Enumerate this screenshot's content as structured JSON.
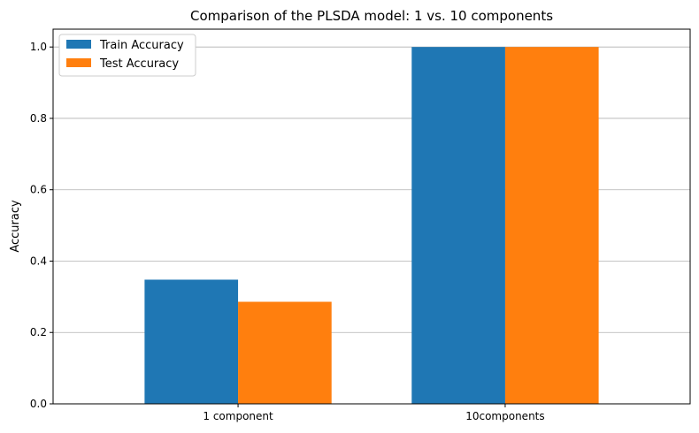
{
  "chart_data": {
    "type": "bar",
    "title": "Comparison of the PLSDA model: 1 vs. 10 components",
    "xlabel": "",
    "ylabel": "Accuracy",
    "categories": [
      "1 component",
      "10components"
    ],
    "series": [
      {
        "name": "Train Accuracy",
        "values": [
          0.348,
          1.0
        ],
        "color": "#1f77b4"
      },
      {
        "name": "Test Accuracy",
        "values": [
          0.286,
          1.0
        ],
        "color": "#ff7f0e"
      }
    ],
    "ylim": [
      0,
      1.05
    ],
    "yticks": [
      "0.0",
      "0.2",
      "0.4",
      "0.6",
      "0.8",
      "1.0"
    ],
    "grid": "y",
    "legend_position": "top-left"
  }
}
